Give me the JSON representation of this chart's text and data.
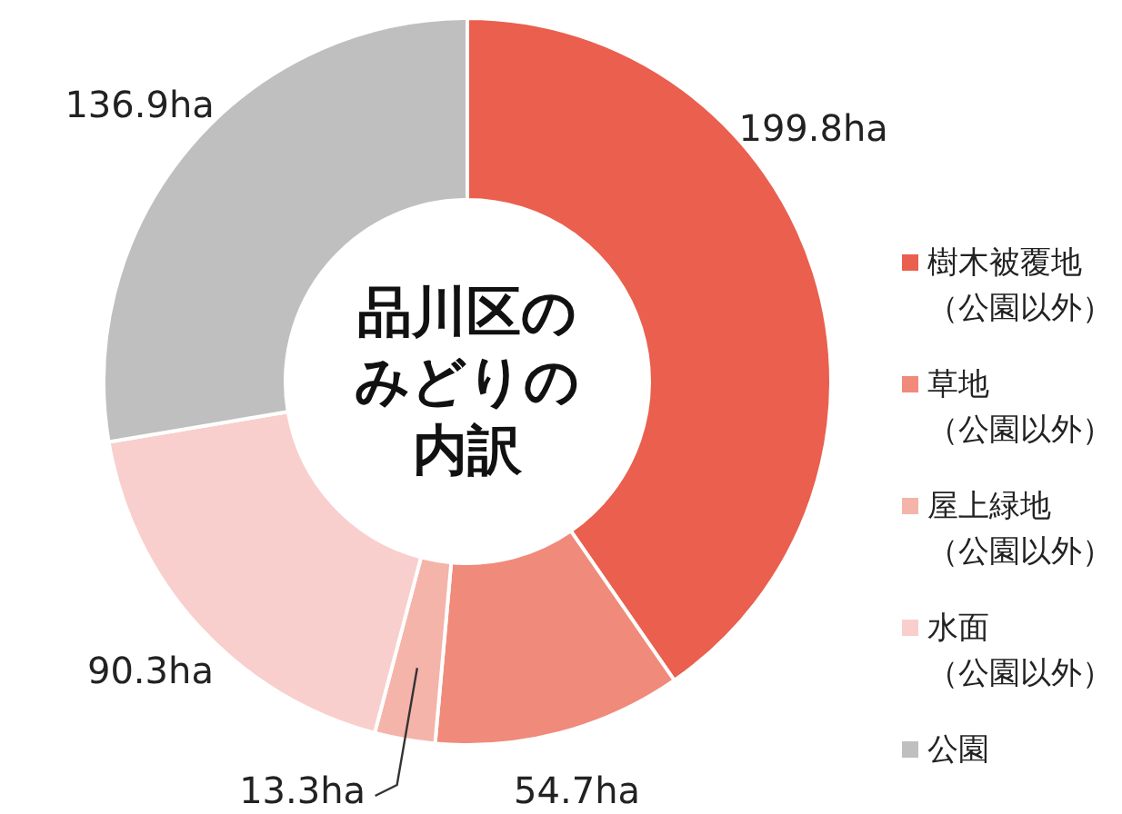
{
  "chart_data": {
    "type": "donut",
    "title": "品川区のみどりの内訳",
    "categories": [
      "樹木被覆地（公園以外）",
      "草地（公園以外）",
      "屋上緑地（公園以外）",
      "水面（公園以外）",
      "公園"
    ],
    "values": [
      199.8,
      54.7,
      13.3,
      90.3,
      136.9
    ],
    "colors": [
      "#ea5f4e",
      "#f08a7b",
      "#f4b4a9",
      "#f8cfcc",
      "#bfbfbf"
    ],
    "value_labels": [
      "199.8ha",
      "54.7ha",
      "13.3ha",
      "90.3ha",
      "136.9ha"
    ],
    "legend": "right"
  }
}
